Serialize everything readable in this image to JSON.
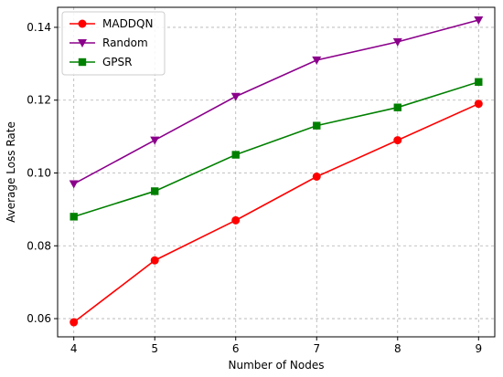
{
  "chart_data": {
    "type": "line",
    "title": "",
    "xlabel": "Number of Nodes",
    "ylabel": "Average Loss Rate",
    "x": [
      4,
      5,
      6,
      7,
      8,
      9
    ],
    "xlim": [
      3.8,
      9.2
    ],
    "ylim": [
      0.055,
      0.1455
    ],
    "xticks": [
      "4",
      "5",
      "6",
      "7",
      "8",
      "9"
    ],
    "yticks": [
      "0.06",
      "0.08",
      "0.10",
      "0.12",
      "0.14"
    ],
    "ytick_values": [
      0.06,
      0.08,
      0.1,
      0.12,
      0.14
    ],
    "grid": true,
    "legend_position": "top-left",
    "series": [
      {
        "name": "MADDQN",
        "color": "#ff0000",
        "marker": "circle",
        "values": [
          0.059,
          0.076,
          0.087,
          0.099,
          0.109,
          0.119
        ]
      },
      {
        "name": "Random",
        "color": "#8b008b",
        "marker": "triangle-down",
        "values": [
          0.097,
          0.109,
          0.121,
          0.131,
          0.136,
          0.142
        ]
      },
      {
        "name": "GPSR",
        "color": "#008000",
        "marker": "square",
        "values": [
          0.088,
          0.095,
          0.105,
          0.113,
          0.118,
          0.125
        ]
      }
    ]
  }
}
